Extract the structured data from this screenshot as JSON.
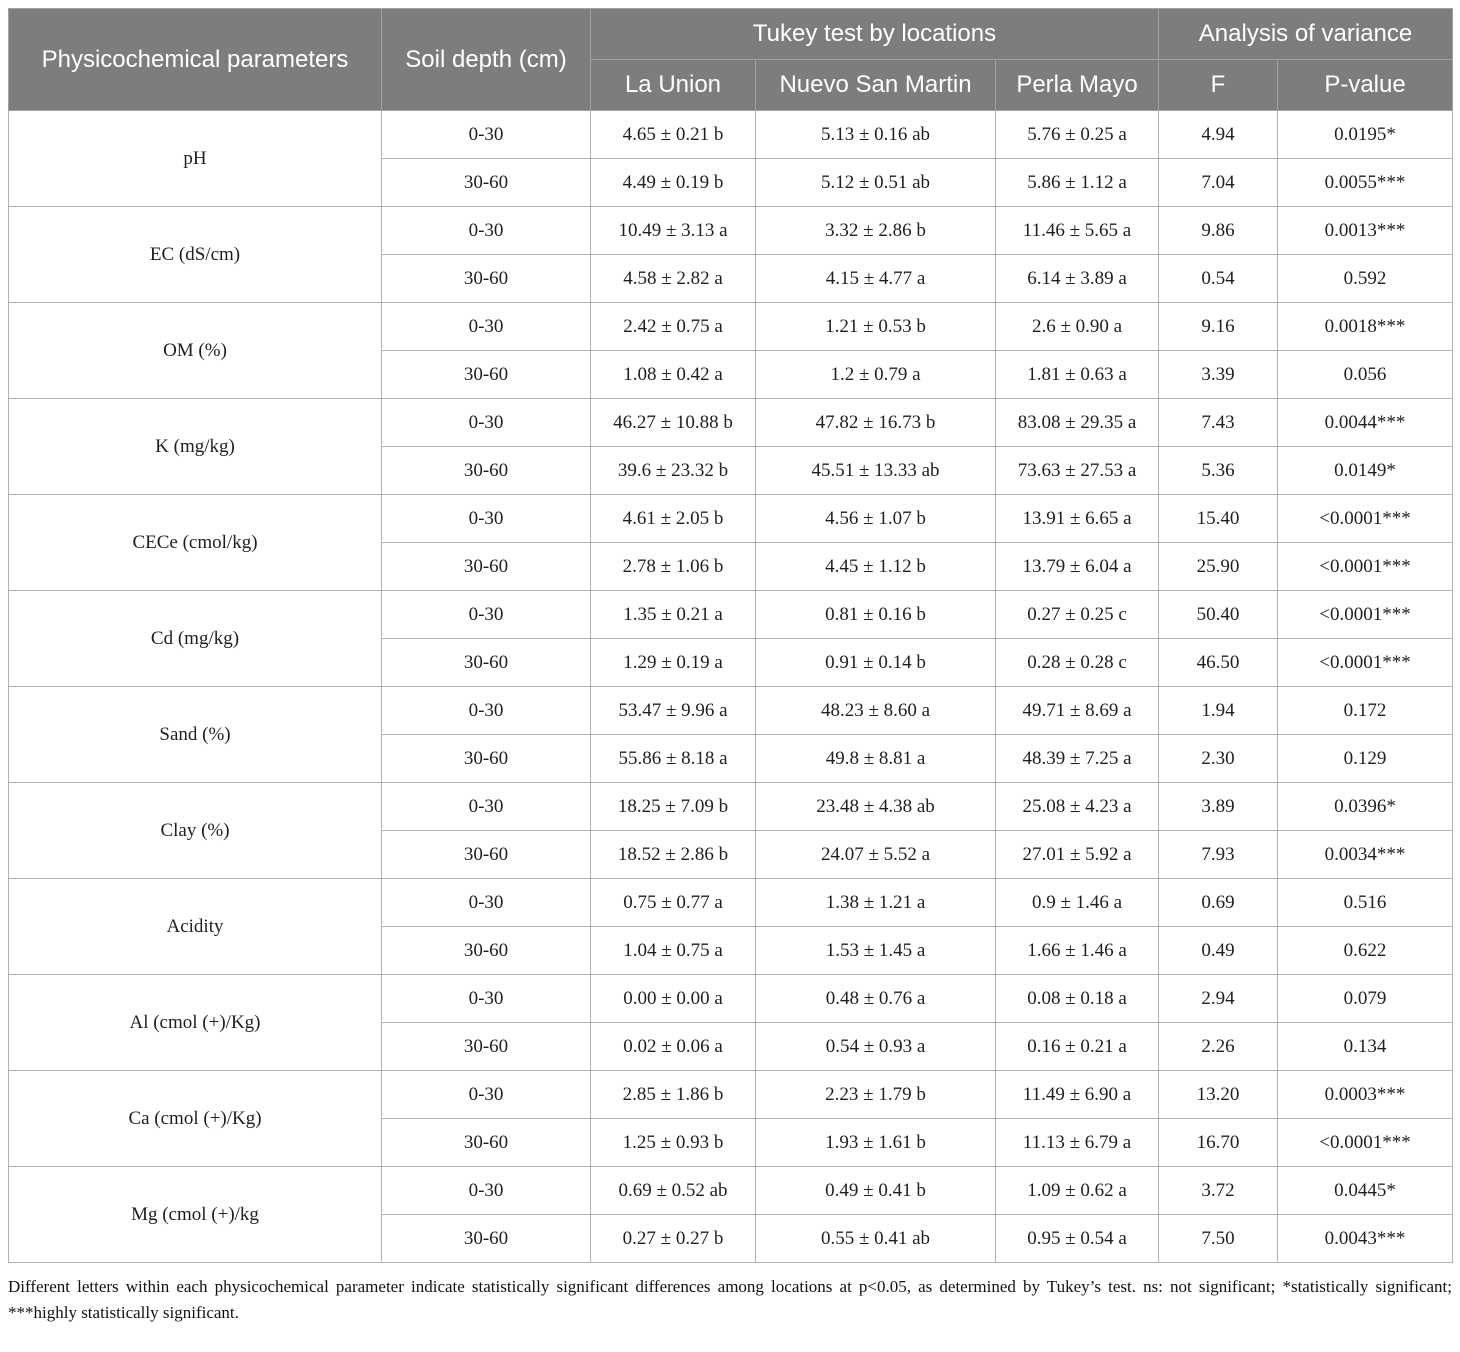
{
  "table": {
    "header": {
      "col_parameters": "Physicochemical parameters",
      "col_depth": "Soil depth (cm)",
      "group_tukey": "Tukey test by locations",
      "group_anova": "Analysis of variance",
      "locations": [
        "La Union",
        "Nuevo San Martin",
        "Perla Mayo"
      ],
      "anova_cols": [
        "F",
        "P-value"
      ]
    },
    "rows": [
      {
        "parameter": "pH",
        "depths": [
          {
            "depth": "0-30",
            "la_union": "4.65 ± 0.21 b",
            "nuevo_san_martin": "5.13 ± 0.16 ab",
            "perla_mayo": "5.76 ± 0.25 a",
            "f": "4.94",
            "p": "0.0195*"
          },
          {
            "depth": "30-60",
            "la_union": "4.49 ± 0.19 b",
            "nuevo_san_martin": "5.12 ± 0.51 ab",
            "perla_mayo": "5.86 ± 1.12 a",
            "f": "7.04",
            "p": "0.0055***"
          }
        ]
      },
      {
        "parameter": "EC (dS/cm)",
        "depths": [
          {
            "depth": "0-30",
            "la_union": "10.49 ± 3.13 a",
            "nuevo_san_martin": "3.32 ± 2.86 b",
            "perla_mayo": "11.46 ± 5.65 a",
            "f": "9.86",
            "p": "0.0013***"
          },
          {
            "depth": "30-60",
            "la_union": "4.58 ± 2.82 a",
            "nuevo_san_martin": "4.15 ± 4.77 a",
            "perla_mayo": "6.14 ± 3.89 a",
            "f": "0.54",
            "p": "0.592"
          }
        ]
      },
      {
        "parameter": "OM (%)",
        "depths": [
          {
            "depth": "0-30",
            "la_union": "2.42 ± 0.75 a",
            "nuevo_san_martin": "1.21 ± 0.53 b",
            "perla_mayo": "2.6 ± 0.90 a",
            "f": "9.16",
            "p": "0.0018***"
          },
          {
            "depth": "30-60",
            "la_union": "1.08 ± 0.42 a",
            "nuevo_san_martin": "1.2 ± 0.79 a",
            "perla_mayo": "1.81 ± 0.63 a",
            "f": "3.39",
            "p": "0.056"
          }
        ]
      },
      {
        "parameter": "K (mg/kg)",
        "depths": [
          {
            "depth": "0-30",
            "la_union": "46.27 ± 10.88 b",
            "nuevo_san_martin": "47.82 ± 16.73 b",
            "perla_mayo": "83.08 ± 29.35 a",
            "f": "7.43",
            "p": "0.0044***"
          },
          {
            "depth": "30-60",
            "la_union": "39.6 ± 23.32 b",
            "nuevo_san_martin": "45.51 ± 13.33 ab",
            "perla_mayo": "73.63 ± 27.53 a",
            "f": "5.36",
            "p": "0.0149*"
          }
        ]
      },
      {
        "parameter": "CECe (cmol/kg)",
        "depths": [
          {
            "depth": "0-30",
            "la_union": "4.61 ± 2.05 b",
            "nuevo_san_martin": "4.56 ± 1.07 b",
            "perla_mayo": "13.91 ± 6.65 a",
            "f": "15.40",
            "p": "<0.0001***"
          },
          {
            "depth": "30-60",
            "la_union": "2.78 ± 1.06 b",
            "nuevo_san_martin": "4.45 ± 1.12 b",
            "perla_mayo": "13.79 ± 6.04 a",
            "f": "25.90",
            "p": "<0.0001***"
          }
        ]
      },
      {
        "parameter": "Cd (mg/kg)",
        "depths": [
          {
            "depth": "0-30",
            "la_union": "1.35 ± 0.21 a",
            "nuevo_san_martin": "0.81 ± 0.16 b",
            "perla_mayo": "0.27 ± 0.25 c",
            "f": "50.40",
            "p": "<0.0001***"
          },
          {
            "depth": "30-60",
            "la_union": "1.29 ± 0.19 a",
            "nuevo_san_martin": "0.91 ± 0.14 b",
            "perla_mayo": "0.28 ± 0.28 c",
            "f": "46.50",
            "p": "<0.0001***"
          }
        ]
      },
      {
        "parameter": "Sand (%)",
        "depths": [
          {
            "depth": "0-30",
            "la_union": "53.47 ± 9.96 a",
            "nuevo_san_martin": "48.23 ± 8.60 a",
            "perla_mayo": "49.71 ± 8.69 a",
            "f": "1.94",
            "p": "0.172"
          },
          {
            "depth": "30-60",
            "la_union": "55.86 ± 8.18 a",
            "nuevo_san_martin": "49.8 ± 8.81 a",
            "perla_mayo": "48.39 ± 7.25 a",
            "f": "2.30",
            "p": "0.129"
          }
        ]
      },
      {
        "parameter": "Clay (%)",
        "depths": [
          {
            "depth": "0-30",
            "la_union": "18.25 ± 7.09 b",
            "nuevo_san_martin": "23.48 ± 4.38 ab",
            "perla_mayo": "25.08 ± 4.23 a",
            "f": "3.89",
            "p": "0.0396*"
          },
          {
            "depth": "30-60",
            "la_union": "18.52 ± 2.86 b",
            "nuevo_san_martin": "24.07 ± 5.52 a",
            "perla_mayo": "27.01 ± 5.92 a",
            "f": "7.93",
            "p": "0.0034***"
          }
        ]
      },
      {
        "parameter": "Acidity",
        "depths": [
          {
            "depth": "0-30",
            "la_union": "0.75 ± 0.77 a",
            "nuevo_san_martin": "1.38 ± 1.21 a",
            "perla_mayo": "0.9 ± 1.46 a",
            "f": "0.69",
            "p": "0.516"
          },
          {
            "depth": "30-60",
            "la_union": "1.04 ± 0.75 a",
            "nuevo_san_martin": "1.53 ± 1.45 a",
            "perla_mayo": "1.66 ± 1.46 a",
            "f": "0.49",
            "p": "0.622"
          }
        ]
      },
      {
        "parameter": "Al (cmol (+)/Kg)",
        "depths": [
          {
            "depth": "0-30",
            "la_union": "0.00 ± 0.00 a",
            "nuevo_san_martin": "0.48 ± 0.76 a",
            "perla_mayo": "0.08 ± 0.18 a",
            "f": "2.94",
            "p": "0.079"
          },
          {
            "depth": "30-60",
            "la_union": "0.02 ± 0.06 a",
            "nuevo_san_martin": "0.54 ± 0.93 a",
            "perla_mayo": "0.16 ± 0.21 a",
            "f": "2.26",
            "p": "0.134"
          }
        ]
      },
      {
        "parameter": "Ca (cmol (+)/Kg)",
        "depths": [
          {
            "depth": "0-30",
            "la_union": "2.85 ± 1.86 b",
            "nuevo_san_martin": "2.23 ± 1.79 b",
            "perla_mayo": "11.49 ± 6.90 a",
            "f": "13.20",
            "p": "0.0003***"
          },
          {
            "depth": "30-60",
            "la_union": "1.25 ± 0.93 b",
            "nuevo_san_martin": "1.93 ± 1.61 b",
            "perla_mayo": "11.13 ± 6.79 a",
            "f": "16.70",
            "p": "<0.0001***"
          }
        ]
      },
      {
        "parameter": "Mg (cmol (+)/kg",
        "depths": [
          {
            "depth": "0-30",
            "la_union": "0.69 ± 0.52 ab",
            "nuevo_san_martin": "0.49 ± 0.41 b",
            "perla_mayo": "1.09 ± 0.62 a",
            "f": "3.72",
            "p": "0.0445*"
          },
          {
            "depth": "30-60",
            "la_union": "0.27 ± 0.27 b",
            "nuevo_san_martin": "0.55 ± 0.41 ab",
            "perla_mayo": "0.95 ± 0.54 a",
            "f": "7.50",
            "p": "0.0043***"
          }
        ]
      }
    ],
    "footnote": "Different letters within each physicochemical parameter indicate statistically significant differences among locations at p<0.05, as determined by Tukey’s test. ns: not significant; *statistically significant; ***highly statistically significant."
  },
  "colors": {
    "header_bg": "#7d7d7d",
    "header_text": "#ffffff",
    "header_border": "#a2a2a2",
    "body_border": "#b2b2b2",
    "body_text": "#1f1f1f"
  }
}
